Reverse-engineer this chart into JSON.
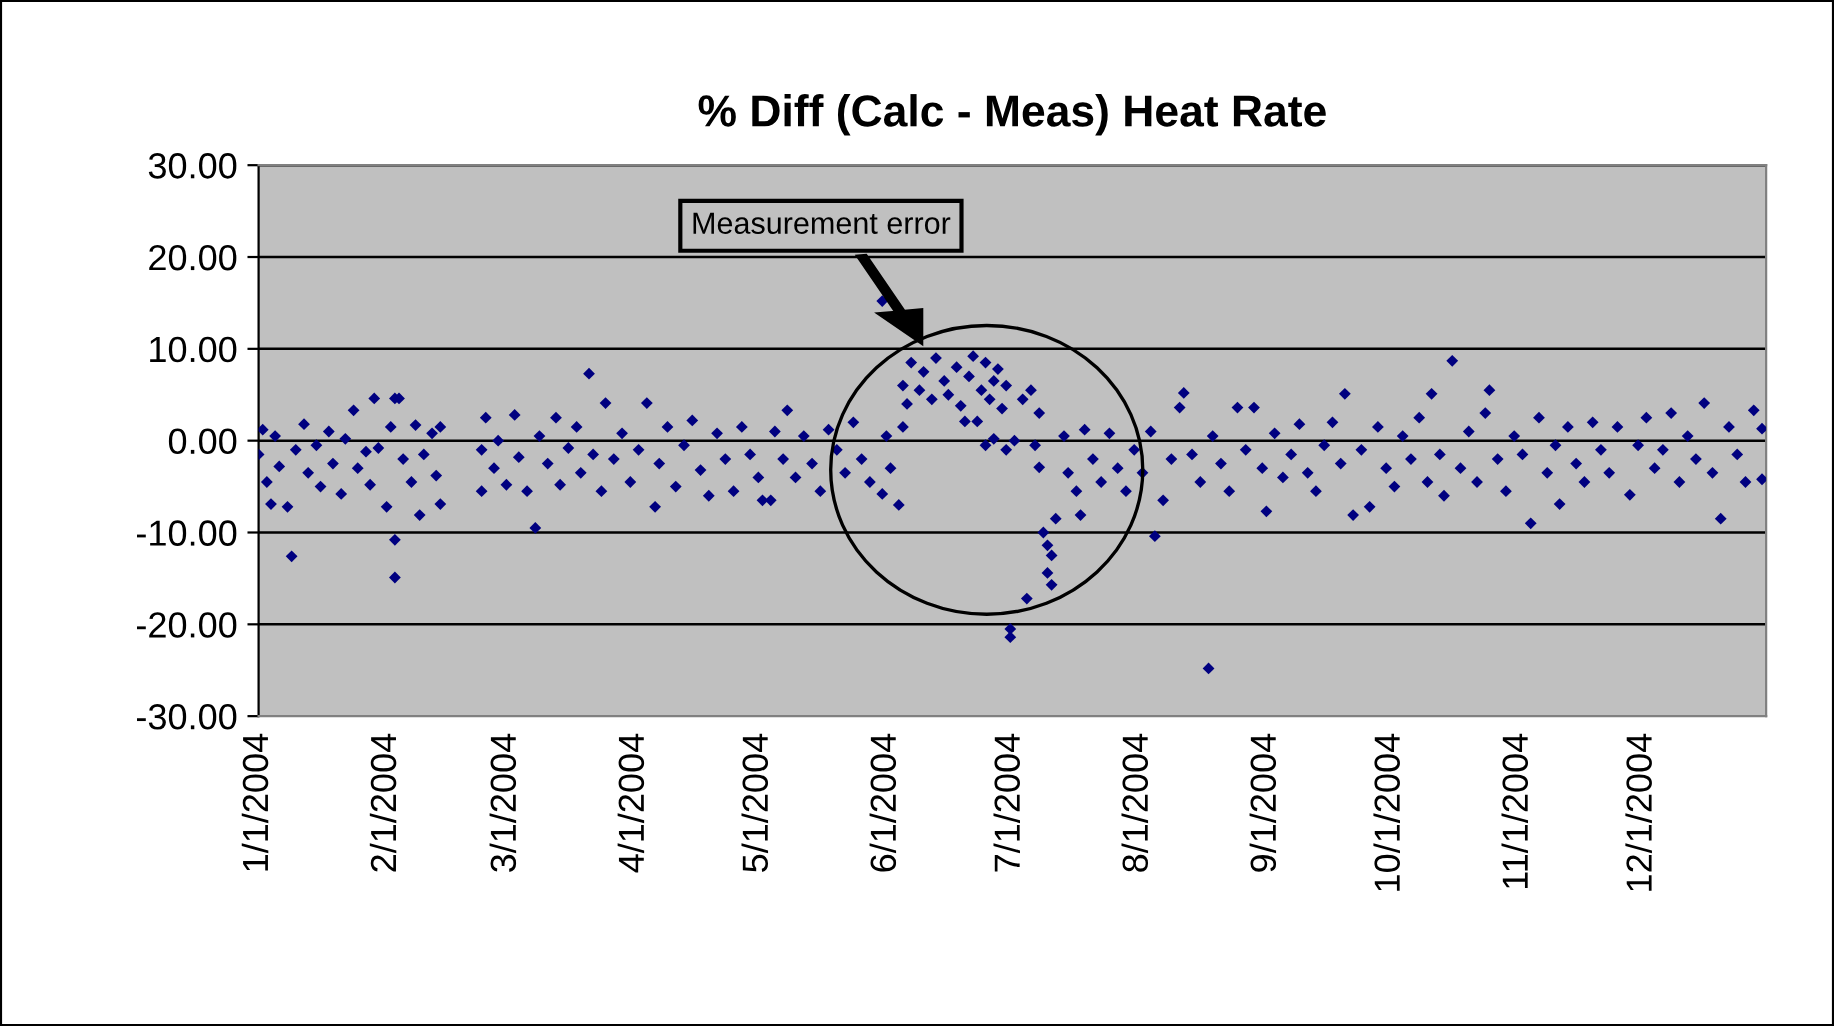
{
  "chart_data": {
    "type": "scatter",
    "title": "% Diff (Calc - Meas) Heat Rate",
    "x": [
      "2004-01-01",
      "2004-01-02",
      "2004-01-03",
      "2004-01-04",
      "2004-01-05",
      "2004-01-06",
      "2004-01-08",
      "2004-01-09",
      "2004-01-10",
      "2004-01-12",
      "2004-01-13",
      "2004-01-15",
      "2004-01-16",
      "2004-01-18",
      "2004-01-19",
      "2004-01-21",
      "2004-01-22",
      "2004-01-24",
      "2004-01-25",
      "2004-01-27",
      "2004-01-28",
      "2004-01-29",
      "2004-01-30",
      "2004-02-01",
      "2004-02-02",
      "2004-02-03",
      "2004-02-03",
      "2004-02-03",
      "2004-02-04",
      "2004-02-05",
      "2004-02-07",
      "2004-02-08",
      "2004-02-09",
      "2004-02-10",
      "2004-02-12",
      "2004-02-13",
      "2004-02-14",
      "2004-02-14",
      "2004-02-24",
      "2004-02-24",
      "2004-02-25",
      "2004-02-27",
      "2004-02-28",
      "2004-03-01",
      "2004-03-03",
      "2004-03-04",
      "2004-03-06",
      "2004-03-08",
      "2004-03-09",
      "2004-03-11",
      "2004-03-13",
      "2004-03-14",
      "2004-03-16",
      "2004-03-18",
      "2004-03-19",
      "2004-03-21",
      "2004-03-22",
      "2004-03-24",
      "2004-03-25",
      "2004-03-27",
      "2004-03-29",
      "2004-03-31",
      "2004-04-02",
      "2004-04-04",
      "2004-04-06",
      "2004-04-07",
      "2004-04-09",
      "2004-04-11",
      "2004-04-13",
      "2004-04-15",
      "2004-04-17",
      "2004-04-19",
      "2004-04-21",
      "2004-04-23",
      "2004-04-25",
      "2004-04-27",
      "2004-04-29",
      "2004-05-01",
      "2004-05-02",
      "2004-05-04",
      "2004-05-05",
      "2004-05-07",
      "2004-05-08",
      "2004-05-10",
      "2004-05-12",
      "2004-05-14",
      "2004-05-16",
      "2004-05-18",
      "2004-05-20",
      "2004-05-22",
      "2004-05-24",
      "2004-05-26",
      "2004-05-28",
      "2004-05-31",
      "2004-05-31",
      "2004-06-01",
      "2004-06-02",
      "2004-06-04",
      "2004-06-05",
      "2004-06-05",
      "2004-06-06",
      "2004-06-07",
      "2004-06-09",
      "2004-06-10",
      "2004-06-12",
      "2004-06-13",
      "2004-06-15",
      "2004-06-16",
      "2004-06-18",
      "2004-06-19",
      "2004-06-20",
      "2004-06-21",
      "2004-06-22",
      "2004-06-23",
      "2004-06-24",
      "2004-06-25",
      "2004-06-26",
      "2004-06-27",
      "2004-06-28",
      "2004-06-29",
      "2004-06-30",
      "2004-07-01",
      "2004-07-01",
      "2004-06-25",
      "2004-06-27",
      "2004-06-30",
      "2004-07-02",
      "2004-07-04",
      "2004-07-05",
      "2004-07-06",
      "2004-07-07",
      "2004-07-08",
      "2004-07-08",
      "2004-07-09",
      "2004-07-10",
      "2004-07-10",
      "2004-07-11",
      "2004-07-11",
      "2004-07-12",
      "2004-07-14",
      "2004-07-15",
      "2004-07-17",
      "2004-07-18",
      "2004-07-19",
      "2004-07-21",
      "2004-07-23",
      "2004-07-25",
      "2004-07-27",
      "2004-07-29",
      "2004-07-31",
      "2004-08-02",
      "2004-08-04",
      "2004-08-05",
      "2004-08-07",
      "2004-08-09",
      "2004-08-11",
      "2004-08-12",
      "2004-08-14",
      "2004-08-16",
      "2004-08-18",
      "2004-08-19",
      "2004-08-21",
      "2004-08-23",
      "2004-08-25",
      "2004-08-27",
      "2004-08-29",
      "2004-08-31",
      "2004-09-01",
      "2004-09-03",
      "2004-09-05",
      "2004-09-07",
      "2004-09-09",
      "2004-09-11",
      "2004-09-13",
      "2004-09-15",
      "2004-09-17",
      "2004-09-19",
      "2004-09-20",
      "2004-09-22",
      "2004-09-24",
      "2004-09-26",
      "2004-09-28",
      "2004-09-30",
      "2004-10-02",
      "2004-10-04",
      "2004-10-06",
      "2004-10-08",
      "2004-10-10",
      "2004-10-11",
      "2004-10-13",
      "2004-10-14",
      "2004-10-16",
      "2004-10-18",
      "2004-10-20",
      "2004-10-22",
      "2004-10-24",
      "2004-10-25",
      "2004-10-27",
      "2004-10-29",
      "2004-10-31",
      "2004-11-02",
      "2004-11-04",
      "2004-11-06",
      "2004-11-08",
      "2004-11-10",
      "2004-11-11",
      "2004-11-13",
      "2004-11-15",
      "2004-11-17",
      "2004-11-19",
      "2004-11-21",
      "2004-11-23",
      "2004-11-25",
      "2004-11-28",
      "2004-11-30",
      "2004-12-02",
      "2004-12-04",
      "2004-12-06",
      "2004-12-08",
      "2004-12-10",
      "2004-12-12",
      "2004-12-14",
      "2004-12-16",
      "2004-12-18",
      "2004-12-20",
      "2004-12-22",
      "2004-12-24",
      "2004-12-26",
      "2004-12-28",
      "2004-12-30",
      "2004-12-30"
    ],
    "series": [
      {
        "color": "#000080",
        "values": [
          -1.5,
          1.2,
          -4.5,
          -6.9,
          0.5,
          -2.8,
          -7.2,
          -12.6,
          -1.0,
          1.8,
          -3.5,
          -0.5,
          -5.0,
          1.0,
          -2.5,
          -5.8,
          0.2,
          3.3,
          -3.0,
          -1.2,
          -4.8,
          4.6,
          -0.8,
          -7.2,
          1.5,
          -10.8,
          -14.9,
          4.6,
          4.6,
          -2.0,
          -4.5,
          1.7,
          -8.1,
          -1.5,
          0.8,
          -3.8,
          -6.9,
          1.5,
          -1.0,
          -5.5,
          2.5,
          -3.0,
          0.0,
          -4.8,
          2.8,
          -1.8,
          -5.5,
          -9.5,
          0.5,
          -2.5,
          2.5,
          -4.8,
          -0.8,
          1.5,
          -3.5,
          7.3,
          -1.5,
          -5.5,
          4.1,
          -2.0,
          0.8,
          -4.5,
          -1.0,
          4.1,
          -7.2,
          -2.5,
          1.5,
          -5.0,
          -0.5,
          2.2,
          -3.2,
          -6.0,
          0.8,
          -2.0,
          -5.5,
          1.5,
          -1.5,
          -4.0,
          -6.5,
          -6.5,
          1.0,
          -2.0,
          3.3,
          -4.0,
          0.5,
          -2.5,
          -5.5,
          1.2,
          -1.0,
          -3.5,
          2.0,
          -2.0,
          -4.5,
          15.2,
          -5.8,
          0.5,
          -3.0,
          -7.0,
          1.5,
          6.0,
          4.0,
          8.5,
          5.5,
          7.5,
          4.5,
          9.0,
          6.5,
          5.0,
          8.0,
          3.8,
          2.1,
          7.0,
          9.2,
          2.1,
          5.5,
          8.5,
          4.5,
          6.5,
          7.8,
          3.5,
          6.0,
          -20.5,
          -21.4,
          -0.5,
          0.2,
          -1.0,
          0.0,
          4.5,
          -17.2,
          5.5,
          -0.5,
          3.0,
          -2.9,
          -10.0,
          -14.4,
          -11.4,
          -12.5,
          -15.7,
          -8.5,
          0.5,
          -3.5,
          -5.5,
          -8.1,
          1.2,
          -2.0,
          -4.5,
          0.8,
          -3.0,
          -5.5,
          -1.0,
          -3.5,
          1.0,
          -10.4,
          -6.5,
          -2.0,
          3.6,
          5.2,
          -1.5,
          -4.5,
          -24.8,
          0.5,
          -2.5,
          -5.5,
          3.6,
          -1.0,
          3.6,
          -3.0,
          -7.7,
          0.8,
          -4.0,
          -1.5,
          1.8,
          -3.5,
          -5.5,
          -0.5,
          2.0,
          -2.5,
          5.1,
          -8.1,
          -1.0,
          -7.2,
          1.5,
          -3.0,
          -5.0,
          0.5,
          -2.0,
          2.5,
          -4.5,
          5.1,
          -1.5,
          -6.0,
          8.7,
          -3.0,
          1.0,
          -4.5,
          3.0,
          5.5,
          -2.0,
          -5.5,
          0.5,
          -1.5,
          -9.0,
          2.5,
          -3.5,
          -0.5,
          -6.9,
          1.5,
          -2.5,
          -4.5,
          2.0,
          -1.0,
          -3.5,
          1.5,
          -5.9,
          -0.5,
          2.5,
          -3.0,
          -1.0,
          3.0,
          -4.5,
          0.5,
          -2.0,
          4.1,
          -3.5,
          -8.5,
          1.5,
          -1.5,
          -4.5,
          3.3,
          1.3,
          -4.2
        ]
      }
    ],
    "xlim": [
      "2004-01-01",
      "2004-12-31"
    ],
    "xticks": [
      {
        "value": "2004-01-01",
        "label": "1/1/2004"
      },
      {
        "value": "2004-02-01",
        "label": "2/1/2004"
      },
      {
        "value": "2004-03-01",
        "label": "3/1/2004"
      },
      {
        "value": "2004-04-01",
        "label": "4/1/2004"
      },
      {
        "value": "2004-05-01",
        "label": "5/1/2004"
      },
      {
        "value": "2004-06-01",
        "label": "6/1/2004"
      },
      {
        "value": "2004-07-01",
        "label": "7/1/2004"
      },
      {
        "value": "2004-08-01",
        "label": "8/1/2004"
      },
      {
        "value": "2004-09-01",
        "label": "9/1/2004"
      },
      {
        "value": "2004-10-01",
        "label": "10/1/2004"
      },
      {
        "value": "2004-11-01",
        "label": "11/1/2004"
      },
      {
        "value": "2004-12-01",
        "label": "12/1/2004"
      }
    ],
    "ylim": [
      -30,
      30
    ],
    "yticks": [
      {
        "value": -30,
        "label": "-30.00"
      },
      {
        "value": -20,
        "label": "-20.00"
      },
      {
        "value": -10,
        "label": "-10.00"
      },
      {
        "value": 0,
        "label": "0.00"
      },
      {
        "value": 10,
        "label": "10.00"
      },
      {
        "value": 20,
        "label": "20.00"
      },
      {
        "value": 30,
        "label": "30.00"
      }
    ],
    "grid": "y",
    "marker": "diamond",
    "legend": false,
    "annotations": [
      "Measurement error"
    ]
  }
}
